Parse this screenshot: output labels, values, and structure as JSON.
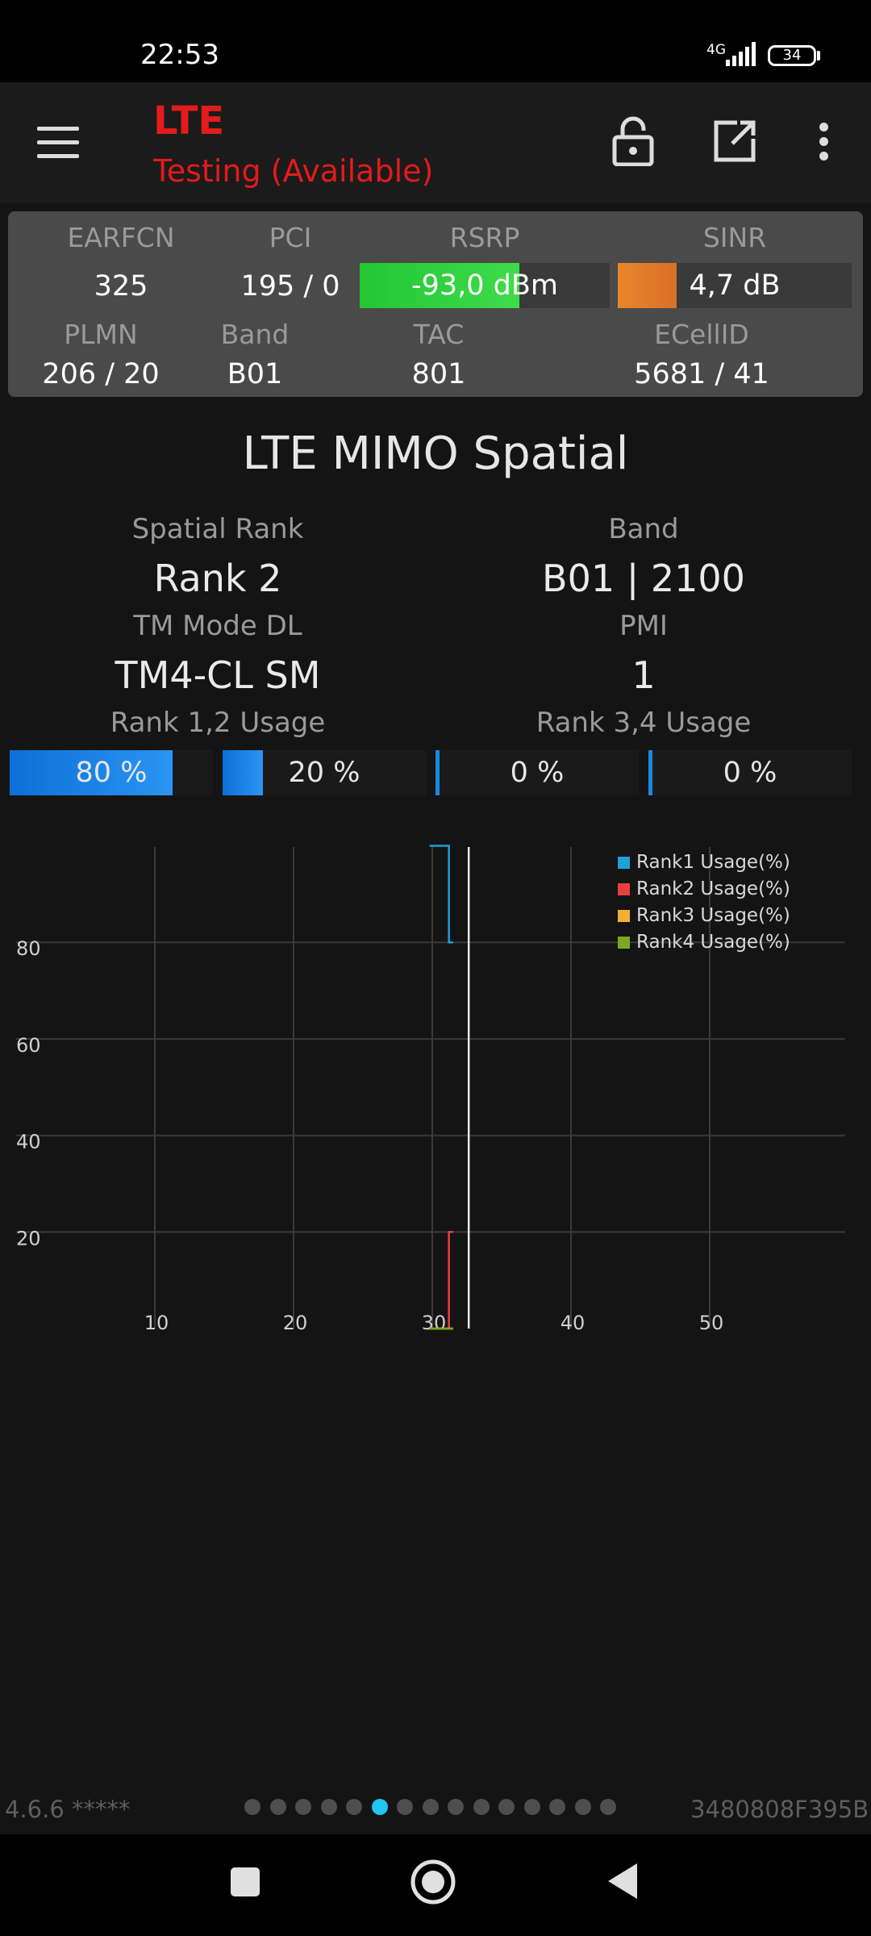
{
  "status_bar": {
    "time": "22:53",
    "network": "4G",
    "battery": "34"
  },
  "app_bar": {
    "title": "LTE",
    "subtitle": "Testing (Available)"
  },
  "icons": {
    "menu": "hamburger-menu-icon",
    "lock": "unlock-icon",
    "open": "open-in-new-icon",
    "more": "more-vert-icon"
  },
  "colors": {
    "accent_red": "#e31b1b",
    "rsrp_good": "#22c733",
    "sinr_fair": "#e8862a",
    "usage_blue": "#1a86e8",
    "rank1": "#1fa0d8",
    "rank2": "#e84040",
    "rank3": "#f0b030",
    "rank4": "#7aa820",
    "active_page": "#22c4f0"
  },
  "info": {
    "earfcn": {
      "label": "EARFCN",
      "value": "325"
    },
    "pci": {
      "label": "PCI",
      "value": "195 / 0"
    },
    "rsrp": {
      "label": "RSRP",
      "value": "-93,0 dBm",
      "level": 0.64
    },
    "sinr": {
      "label": "SINR",
      "value": "4,7 dB",
      "level": 0.25
    },
    "plmn": {
      "label": "PLMN",
      "value": "206 / 20"
    },
    "band": {
      "label": "Band",
      "value": "B01"
    },
    "tac": {
      "label": "TAC",
      "value": "801"
    },
    "ecellid": {
      "label": "ECellID",
      "value": "5681 / 41"
    }
  },
  "mimo": {
    "title": "LTE MIMO Spatial",
    "spatial_rank": {
      "label": "Spatial Rank",
      "value": "Rank 2"
    },
    "band": {
      "label": "Band",
      "value": "B01 | 2100"
    },
    "tm_mode": {
      "label": "TM Mode DL",
      "value": "TM4-CL SM"
    },
    "pmi": {
      "label": "PMI",
      "value": "1"
    },
    "rank12_label": "Rank 1,2 Usage",
    "rank34_label": "Rank 3,4 Usage",
    "usage": [
      {
        "text": "80 %",
        "value": 80
      },
      {
        "text": "20 %",
        "value": 20
      },
      {
        "text": "0 %",
        "value": 0
      },
      {
        "text": "0 %",
        "value": 0
      }
    ]
  },
  "chart_data": {
    "type": "line",
    "x_ticks": [
      "10",
      "20",
      "30",
      "40",
      "50"
    ],
    "y_ticks": [
      "20",
      "40",
      "60",
      "80"
    ],
    "xlim": [
      0,
      50
    ],
    "ylim": [
      0,
      100
    ],
    "grid": true,
    "legend_position": "top-right",
    "cursor_x": 31,
    "series": [
      {
        "name": "Rank1 Usage(%)",
        "color": "#1fa0d8",
        "points": [
          [
            29.8,
            100
          ],
          [
            31.2,
            100
          ],
          [
            31.2,
            80
          ],
          [
            31.5,
            80
          ]
        ]
      },
      {
        "name": "Rank2 Usage(%)",
        "color": "#e84040",
        "points": [
          [
            31.2,
            0
          ],
          [
            31.2,
            20
          ],
          [
            31.5,
            20
          ]
        ]
      },
      {
        "name": "Rank3 Usage(%)",
        "color": "#f0b030",
        "points": [
          [
            29.8,
            0
          ],
          [
            31.5,
            0
          ]
        ]
      },
      {
        "name": "Rank4 Usage(%)",
        "color": "#7aa820",
        "points": [
          [
            29.8,
            0
          ],
          [
            31.5,
            0
          ]
        ]
      }
    ]
  },
  "footer": {
    "version": "4.6.6 *****",
    "cell_hex": "3480808F395B",
    "page_count": 15,
    "active_page": 6
  }
}
